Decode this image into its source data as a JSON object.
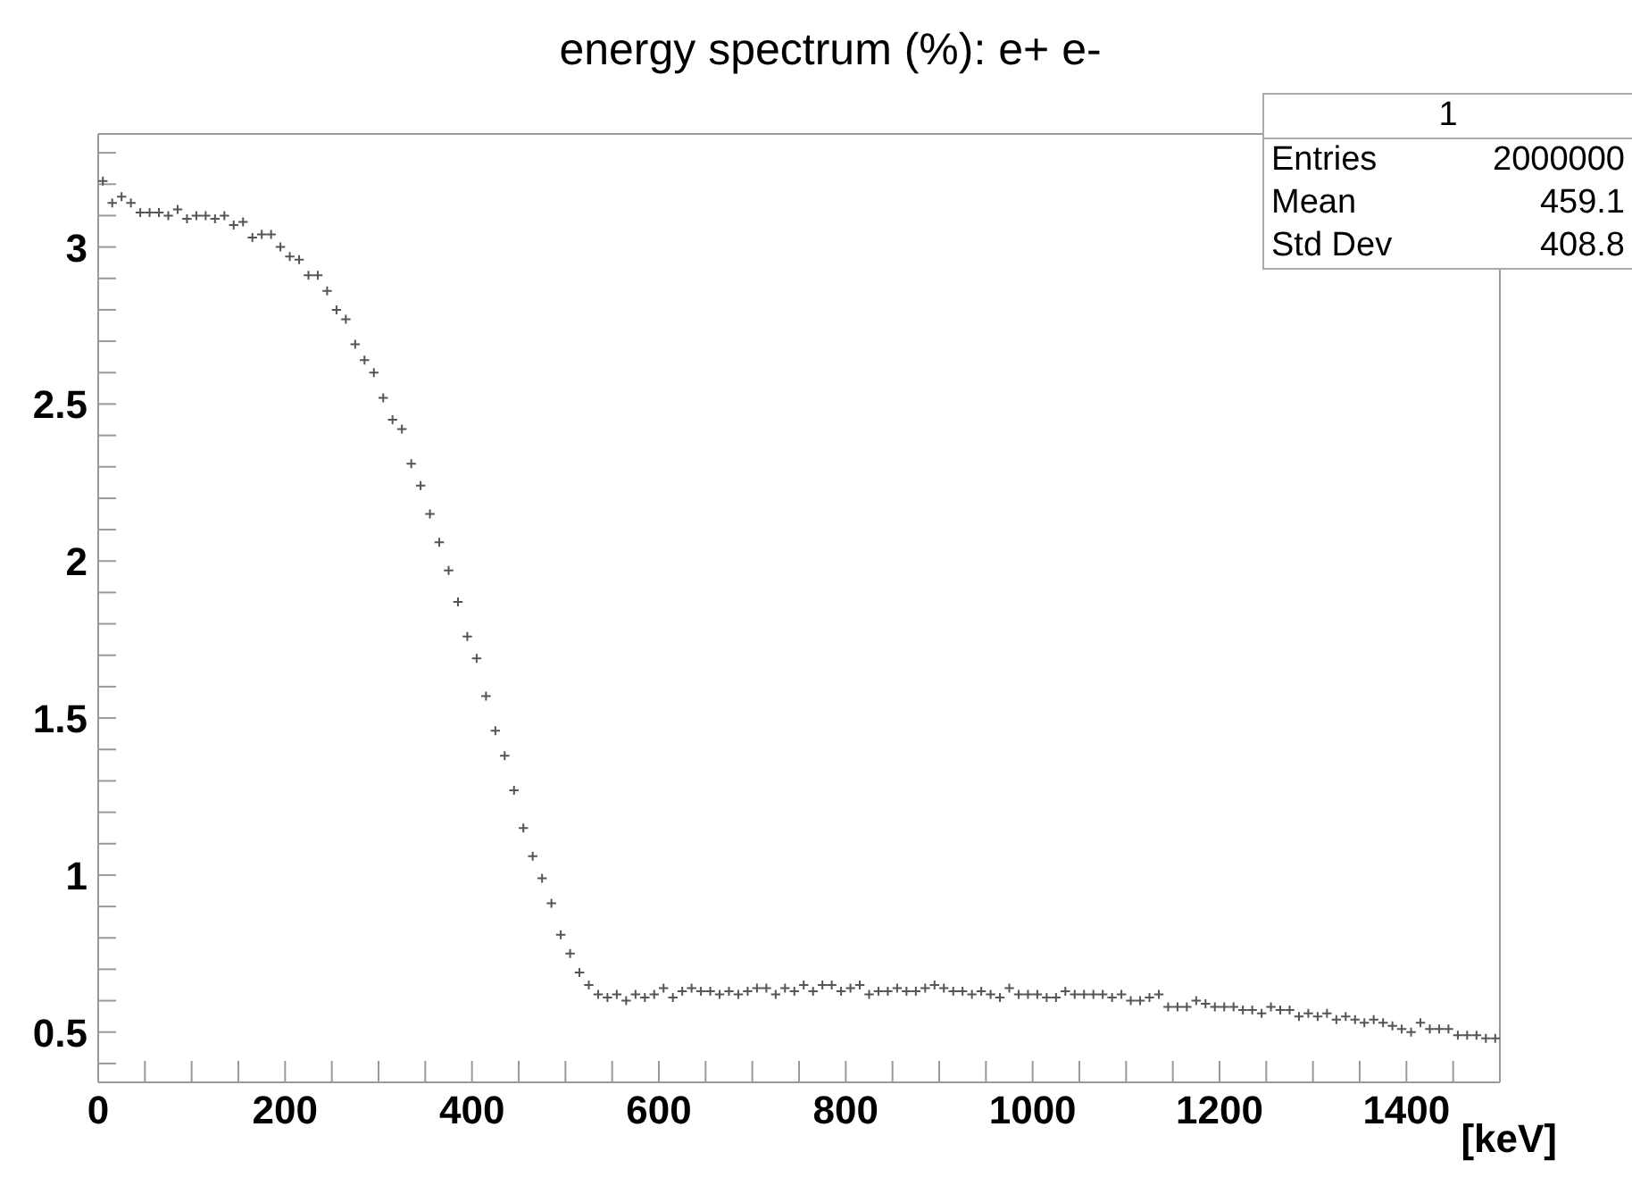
{
  "chart_data": {
    "type": "scatter",
    "title": "energy spectrum (%): e+ e-",
    "xlabel": "[keV]",
    "annotations": [
      "1",
      "Entries",
      "2000000",
      "Mean",
      "459.1",
      "Std Dev",
      "408.8"
    ],
    "marker": "cross",
    "color": "#555555",
    "x": [
      5,
      15,
      25,
      35,
      45,
      55,
      65,
      75,
      85,
      95,
      105,
      115,
      125,
      135,
      145,
      155,
      165,
      175,
      185,
      195,
      205,
      215,
      225,
      235,
      245,
      255,
      265,
      275,
      285,
      295,
      305,
      315,
      325,
      335,
      345,
      355,
      365,
      375,
      385,
      395,
      405,
      415,
      425,
      435,
      445,
      455,
      465,
      475,
      485,
      495,
      505,
      515,
      525,
      535,
      545,
      555,
      565,
      575,
      585,
      595,
      605,
      615,
      625,
      635,
      645,
      655,
      665,
      675,
      685,
      695,
      705,
      715,
      725,
      735,
      745,
      755,
      765,
      775,
      785,
      795,
      805,
      815,
      825,
      835,
      845,
      855,
      865,
      875,
      885,
      895,
      905,
      915,
      925,
      935,
      945,
      955,
      965,
      975,
      985,
      995,
      1005,
      1015,
      1025,
      1035,
      1045,
      1055,
      1065,
      1075,
      1085,
      1095,
      1105,
      1115,
      1125,
      1135,
      1145,
      1155,
      1165,
      1175,
      1185,
      1195,
      1205,
      1215,
      1225,
      1235,
      1245,
      1255,
      1265,
      1275,
      1285,
      1295,
      1305,
      1315,
      1325,
      1335,
      1345,
      1355,
      1365,
      1375,
      1385,
      1395,
      1405,
      1415,
      1425,
      1435,
      1445,
      1455,
      1465,
      1475,
      1485,
      1495
    ],
    "values": [
      3.21,
      3.14,
      3.16,
      3.14,
      3.11,
      3.11,
      3.11,
      3.1,
      3.12,
      3.09,
      3.1,
      3.1,
      3.09,
      3.1,
      3.07,
      3.08,
      3.03,
      3.04,
      3.04,
      3.0,
      2.97,
      2.96,
      2.91,
      2.91,
      2.86,
      2.8,
      2.77,
      2.69,
      2.64,
      2.6,
      2.52,
      2.45,
      2.42,
      2.31,
      2.24,
      2.15,
      2.06,
      1.97,
      1.87,
      1.76,
      1.69,
      1.57,
      1.46,
      1.38,
      1.27,
      1.15,
      1.06,
      0.99,
      0.91,
      0.81,
      0.75,
      0.69,
      0.65,
      0.62,
      0.61,
      0.62,
      0.6,
      0.62,
      0.61,
      0.62,
      0.64,
      0.61,
      0.63,
      0.64,
      0.63,
      0.63,
      0.62,
      0.63,
      0.62,
      0.63,
      0.64,
      0.64,
      0.62,
      0.64,
      0.63,
      0.65,
      0.63,
      0.65,
      0.65,
      0.63,
      0.64,
      0.65,
      0.62,
      0.63,
      0.63,
      0.64,
      0.63,
      0.63,
      0.64,
      0.65,
      0.64,
      0.63,
      0.63,
      0.62,
      0.63,
      0.62,
      0.61,
      0.64,
      0.62,
      0.62,
      0.62,
      0.61,
      0.61,
      0.63,
      0.62,
      0.62,
      0.62,
      0.62,
      0.61,
      0.62,
      0.6,
      0.6,
      0.61,
      0.62,
      0.58,
      0.58,
      0.58,
      0.6,
      0.59,
      0.58,
      0.58,
      0.58,
      0.57,
      0.57,
      0.56,
      0.58,
      0.57,
      0.57,
      0.55,
      0.56,
      0.55,
      0.56,
      0.54,
      0.55,
      0.54,
      0.53,
      0.54,
      0.53,
      0.52,
      0.51,
      0.5,
      0.53,
      0.51,
      0.51,
      0.51,
      0.49,
      0.49,
      0.49,
      0.48,
      0.48
    ],
    "xlim": [
      0,
      1500
    ],
    "xticks": [
      0,
      {
        "value": 50,
        "label": null
      },
      {
        "value": 100,
        "label": null
      },
      {
        "value": 150,
        "label": null
      },
      200,
      {
        "value": 250,
        "label": null
      },
      {
        "value": 300,
        "label": null
      },
      {
        "value": 350,
        "label": null
      },
      400,
      {
        "value": 450,
        "label": null
      },
      {
        "value": 500,
        "label": null
      },
      {
        "value": 550,
        "label": null
      },
      600,
      {
        "value": 650,
        "label": null
      },
      {
        "value": 700,
        "label": null
      },
      {
        "value": 750,
        "label": null
      },
      800,
      {
        "value": 850,
        "label": null
      },
      {
        "value": 900,
        "label": null
      },
      {
        "value": 950,
        "label": null
      },
      1000,
      {
        "value": 1050,
        "label": null
      },
      {
        "value": 1100,
        "label": null
      },
      {
        "value": 1150,
        "label": null
      },
      1200,
      {
        "value": 1250,
        "label": null
      },
      {
        "value": 1300,
        "label": null
      },
      {
        "value": 1350,
        "label": null
      },
      1400,
      {
        "value": 1450,
        "label": null
      },
      {
        "value": 1500,
        "label": null
      }
    ],
    "ylim": [
      0.34,
      3.36
    ],
    "yticks": [
      {
        "value": 0.4,
        "label": null
      },
      0.5,
      {
        "value": 0.6,
        "label": null
      },
      {
        "value": 0.7,
        "label": null
      },
      {
        "value": 0.8,
        "label": null
      },
      {
        "value": 0.9,
        "label": null
      },
      1,
      {
        "value": 1.1,
        "label": null
      },
      {
        "value": 1.2,
        "label": null
      },
      {
        "value": 1.3,
        "label": null
      },
      {
        "value": 1.4,
        "label": null
      },
      1.5,
      {
        "value": 1.6,
        "label": null
      },
      {
        "value": 1.7,
        "label": null
      },
      {
        "value": 1.8,
        "label": null
      },
      {
        "value": 1.9,
        "label": null
      },
      2,
      {
        "value": 2.1,
        "label": null
      },
      {
        "value": 2.2,
        "label": null
      },
      {
        "value": 2.3,
        "label": null
      },
      {
        "value": 2.4,
        "label": null
      },
      2.5,
      {
        "value": 2.6,
        "label": null
      },
      {
        "value": 2.7,
        "label": null
      },
      {
        "value": 2.8,
        "label": null
      },
      {
        "value": 2.9,
        "label": null
      },
      3,
      {
        "value": 3.1,
        "label": null
      },
      {
        "value": 3.2,
        "label": null
      },
      {
        "value": 3.3,
        "label": null
      }
    ]
  }
}
